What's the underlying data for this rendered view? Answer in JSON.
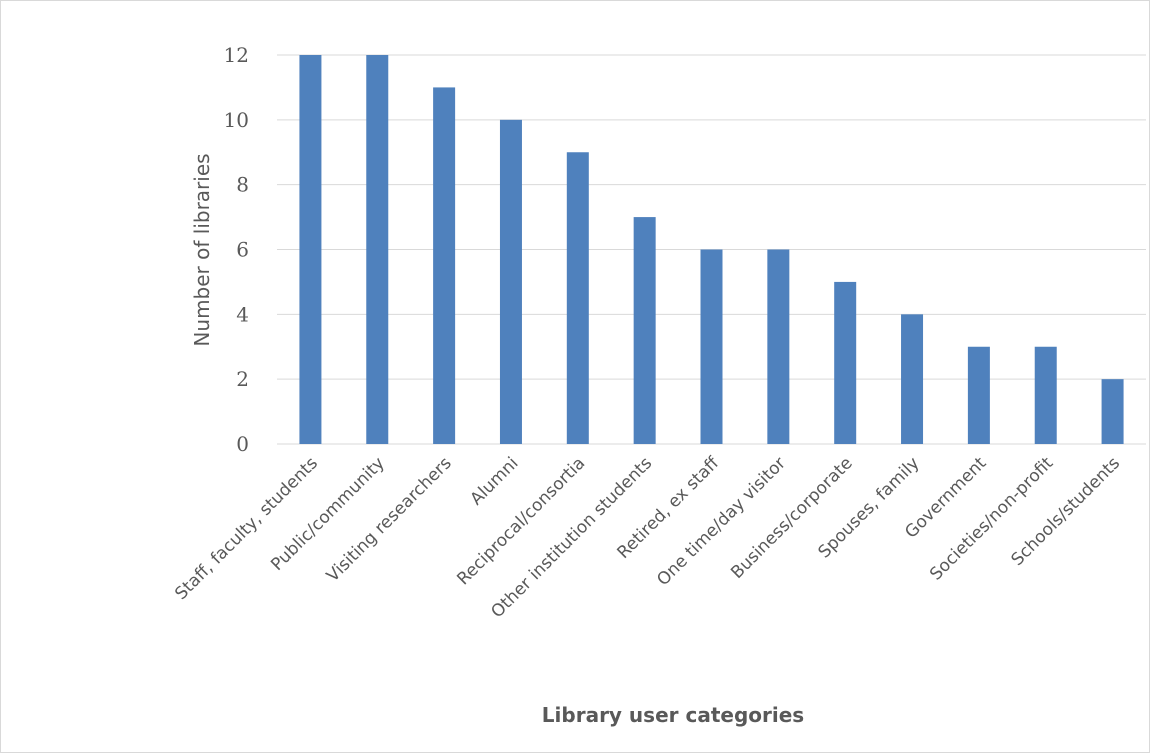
{
  "chart_data": {
    "type": "bar",
    "title": "",
    "xlabel": "Library user categories",
    "ylabel": "Number of libraries",
    "categories": [
      "Staff, faculty, students",
      "Public/community",
      "Visiting researchers",
      "Alumni",
      "Reciprocal/consortia",
      "Other institution students",
      "Retired, ex staff",
      "One time/day visitor",
      "Business/corporate",
      "Spouses, family",
      "Government",
      "Societies/non-profit",
      "Schools/students"
    ],
    "values": [
      12,
      12,
      11,
      10,
      9,
      7,
      6,
      6,
      5,
      4,
      3,
      3,
      2
    ],
    "ylim": [
      0,
      12
    ],
    "yticks": [
      0,
      2,
      4,
      6,
      8,
      10,
      12
    ],
    "grid": true,
    "legend": "none",
    "bar_color": "#4f81bd"
  }
}
